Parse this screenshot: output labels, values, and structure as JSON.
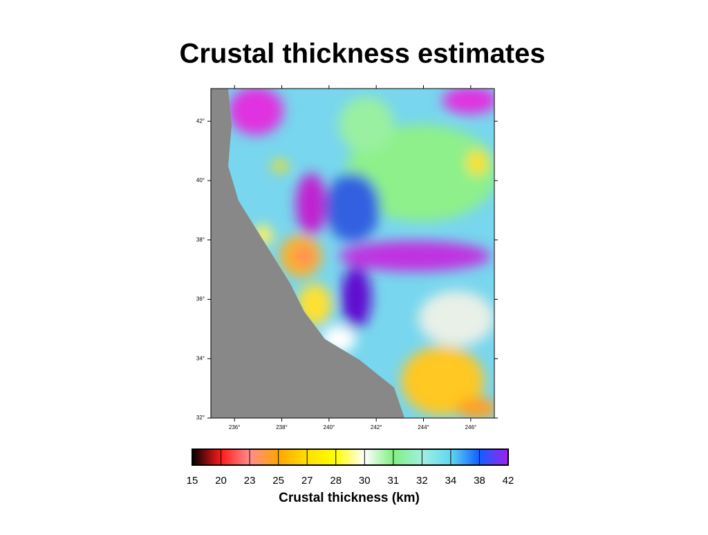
{
  "title": "Crustal thickness estimates",
  "map": {
    "xlim": [
      235,
      247
    ],
    "ylim": [
      32,
      43.1
    ],
    "xticks": [
      {
        "value": 236,
        "label": "236°"
      },
      {
        "value": 238,
        "label": "238°"
      },
      {
        "value": 240,
        "label": "240°"
      },
      {
        "value": 242,
        "label": "242°"
      },
      {
        "value": 244,
        "label": "244°"
      },
      {
        "value": 246,
        "label": "246°"
      }
    ],
    "yticks": [
      {
        "value": 32,
        "label": "32°"
      },
      {
        "value": 34,
        "label": "34°"
      },
      {
        "value": 36,
        "label": "36°"
      },
      {
        "value": 38,
        "label": "38°"
      },
      {
        "value": 40,
        "label": "40°"
      },
      {
        "value": 42,
        "label": "42°"
      }
    ]
  },
  "colorbar": {
    "ticks": [
      15,
      20,
      23,
      25,
      27,
      28,
      30,
      31,
      32,
      34,
      38,
      42
    ],
    "colors": [
      "#000000",
      "#ff1a1a",
      "#ff8c8c",
      "#ffa500",
      "#ffe000",
      "#ffff00",
      "#ffffff",
      "#80f080",
      "#a0f0e0",
      "#60d8f0",
      "#1060ff",
      "#a020f0"
    ],
    "label": "Crustal thickness (km)"
  }
}
